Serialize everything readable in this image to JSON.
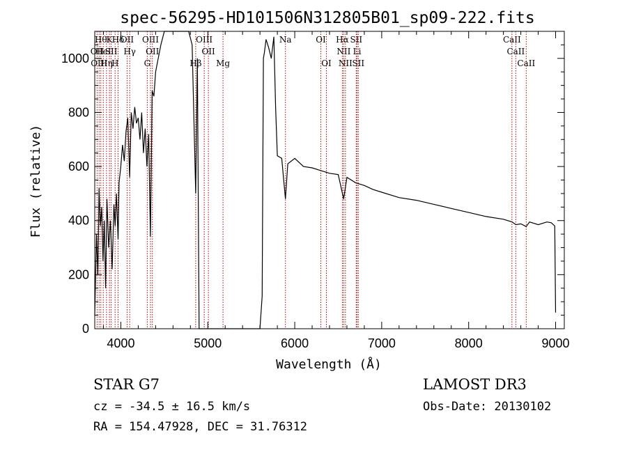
{
  "chart_data": {
    "type": "line",
    "title": "spec-56295-HD101506N312805B01_sp09-222.fits",
    "xlabel": "Wavelength (Å)",
    "ylabel": "Flux (relative)",
    "xlim": [
      3700,
      9100
    ],
    "ylim": [
      0,
      1100
    ],
    "xticks": [
      4000,
      5000,
      6000,
      7000,
      8000,
      9000
    ],
    "yticks": [
      0,
      200,
      400,
      600,
      800,
      1000
    ],
    "grid": false,
    "line_color": "#000000",
    "marker_color": "#aa0000",
    "series": [
      {
        "x": [
          3700,
          3720,
          3735,
          3750,
          3765,
          3780,
          3795,
          3810,
          3825,
          3840,
          3860,
          3880,
          3900,
          3920,
          3935,
          3950,
          3968,
          3980,
          4000,
          4020,
          4040,
          4060,
          4080,
          4101,
          4120,
          4140,
          4160,
          4180,
          4200,
          4220,
          4240,
          4260,
          4280,
          4300,
          4320,
          4340,
          4360,
          4380,
          4400,
          4430,
          4460,
          4500,
          4540,
          4580,
          4620,
          4660,
          4700,
          4740,
          4780,
          4820,
          4861,
          4880,
          4900,
          5000,
          5200,
          5400,
          5600,
          5625,
          5640,
          5650,
          5670,
          5700,
          5730,
          5760,
          5780,
          5800,
          5850,
          5893,
          5920,
          6000,
          6100,
          6200,
          6300,
          6400,
          6500,
          6563,
          6600,
          6700,
          6800,
          6900,
          7000,
          7200,
          7400,
          7600,
          7800,
          8000,
          8200,
          8400,
          8500,
          8542,
          8600,
          8662,
          8700,
          8800,
          8900,
          8950,
          8990,
          9000
        ],
        "y": [
          50,
          350,
          200,
          520,
          380,
          450,
          250,
          400,
          150,
          480,
          300,
          400,
          220,
          460,
          380,
          500,
          330,
          540,
          600,
          680,
          620,
          730,
          780,
          560,
          800,
          740,
          820,
          760,
          780,
          700,
          800,
          650,
          740,
          600,
          720,
          340,
          880,
          860,
          950,
          1000,
          1050,
          1100,
          1100,
          1100,
          1100,
          1100,
          1100,
          1100,
          1100,
          1050,
          500,
          1000,
          0,
          0,
          0,
          0,
          0,
          120,
          1000,
          1020,
          1070,
          1040,
          1000,
          1080,
          820,
          640,
          630,
          480,
          610,
          630,
          600,
          595,
          585,
          575,
          570,
          480,
          560,
          540,
          530,
          515,
          505,
          485,
          475,
          460,
          445,
          430,
          415,
          405,
          395,
          385,
          388,
          378,
          395,
          385,
          395,
          392,
          380,
          60
        ]
      }
    ],
    "line_markers": [
      {
        "wl": 3727,
        "label": "OII",
        "row": 1
      },
      {
        "wl": 3750,
        "label": "OIII",
        "row": 2
      },
      {
        "wl": 3770,
        "label": "Hθ",
        "row": 0
      },
      {
        "wl": 3798,
        "label": "HeI",
        "row": 1
      },
      {
        "wl": 3835,
        "label": "Hη",
        "row": 2
      },
      {
        "wl": 3869,
        "label": "K",
        "row": 0
      },
      {
        "wl": 3889,
        "label": "SII",
        "row": 1
      },
      {
        "wl": 3934,
        "label": "H",
        "row": 2
      },
      {
        "wl": 3968,
        "label": "Hδ",
        "row": 0
      },
      {
        "wl": 4072,
        "label": "OII",
        "row": 0
      },
      {
        "wl": 4102,
        "label": "Hγ",
        "row": 1
      },
      {
        "wl": 4304,
        "label": "G",
        "row": 2
      },
      {
        "wl": 4341,
        "label": "OIII",
        "row": 0
      },
      {
        "wl": 4363,
        "label": "OII",
        "row": 1
      },
      {
        "wl": 4861,
        "label": "Hβ",
        "row": 2
      },
      {
        "wl": 4959,
        "label": "OIII",
        "row": 0
      },
      {
        "wl": 5007,
        "label": "OII",
        "row": 1
      },
      {
        "wl": 5175,
        "label": "Mg",
        "row": 2
      },
      {
        "wl": 5893,
        "label": "Na",
        "row": 0
      },
      {
        "wl": 6300,
        "label": "OI",
        "row": 0
      },
      {
        "wl": 6364,
        "label": "OI",
        "row": 2
      },
      {
        "wl": 6548,
        "label": "Hα",
        "row": 0
      },
      {
        "wl": 6563,
        "label": "NII",
        "row": 1
      },
      {
        "wl": 6583,
        "label": "NII",
        "row": 2
      },
      {
        "wl": 6707,
        "label": "SII",
        "row": 0
      },
      {
        "wl": 6717,
        "label": "Li",
        "row": 1
      },
      {
        "wl": 6731,
        "label": "SII",
        "row": 2
      },
      {
        "wl": 8498,
        "label": "CaII",
        "row": 0
      },
      {
        "wl": 8542,
        "label": "CaII",
        "row": 1
      },
      {
        "wl": 8662,
        "label": "CaII",
        "row": 2
      }
    ]
  },
  "info": {
    "object": "STAR    G7",
    "velocity": "cz = -34.5 ± 16.5 km/s",
    "coords": "RA = 154.47928, DEC =  31.76312",
    "survey": "LAMOST DR3",
    "obs_date": "Obs-Date: 20130102"
  }
}
